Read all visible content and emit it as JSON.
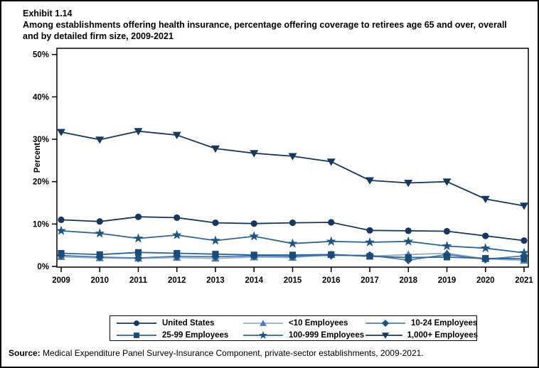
{
  "header": {
    "exhibit_label": "Exhibit 1.14",
    "title_line1": "Among establishments offering health insurance, percentage offering coverage to retirees age 65 and over, overall",
    "title_line2": "and by detailed firm size, 2009-2021"
  },
  "source": {
    "label": "Source:",
    "text": " Medical Expenditure Panel Survey-Insurance Component, private-sector establishments, 2009-2021."
  },
  "colors": {
    "dark_navy": "#17375E",
    "medium_blue": "#1F5480",
    "steel_blue": "#2E6399",
    "light_blue": "#4E7FB0",
    "light_line": "#93ADCB",
    "axis_black": "#000000"
  },
  "chart_data": {
    "type": "line",
    "x": [
      2009,
      2010,
      2011,
      2012,
      2013,
      2014,
      2015,
      2016,
      2017,
      2018,
      2019,
      2020,
      2021
    ],
    "title": "",
    "xlabel": "",
    "ylabel": "Percent",
    "ylim": [
      0,
      50
    ],
    "ytick_values": [
      0,
      10,
      20,
      30,
      40,
      50
    ],
    "ytick_suffix": "%",
    "grid": false,
    "legend_position": "bottom",
    "series": [
      {
        "name": "United States",
        "marker": "circle",
        "color": "#17375E",
        "line_color": "#17375E",
        "values": [
          11.0,
          10.6,
          11.7,
          11.5,
          10.3,
          10.1,
          10.3,
          10.4,
          8.5,
          8.4,
          8.3,
          7.2,
          6.1
        ]
      },
      {
        "name": "<10 Employees",
        "marker": "triangle-up",
        "color": "#4E7FB0",
        "line_color": "#93ADCB",
        "values": [
          2.3,
          2.0,
          1.9,
          2.1,
          1.9,
          2.2,
          2.1,
          2.8,
          2.4,
          2.8,
          3.1,
          1.8,
          1.4
        ]
      },
      {
        "name": "10-24 Employees",
        "marker": "diamond",
        "color": "#1F5480",
        "line_color": "#4E7FB0",
        "values": [
          2.6,
          2.2,
          2.0,
          2.4,
          2.3,
          2.5,
          2.4,
          2.6,
          2.6,
          1.5,
          2.8,
          1.7,
          2.5
        ]
      },
      {
        "name": "25-99 Employees",
        "marker": "square",
        "color": "#1C4B77",
        "line_color": "#2E6399",
        "values": [
          3.1,
          2.8,
          3.3,
          3.1,
          2.9,
          2.7,
          2.7,
          2.8,
          2.4,
          2.1,
          2.2,
          1.9,
          1.8
        ]
      },
      {
        "name": "100-999 Employees",
        "marker": "star",
        "color": "#1F5480",
        "line_color": "#2E6399",
        "values": [
          8.4,
          7.8,
          6.6,
          7.4,
          6.1,
          7.1,
          5.4,
          5.9,
          5.7,
          5.9,
          4.8,
          4.3,
          3.2
        ]
      },
      {
        "name": "1,000+ Employees",
        "marker": "triangle-down",
        "color": "#17375E",
        "line_color": "#17375E",
        "values": [
          31.7,
          29.9,
          31.9,
          31.0,
          27.8,
          26.7,
          26.0,
          24.7,
          20.3,
          19.7,
          20.0,
          15.9,
          14.3
        ]
      }
    ]
  }
}
